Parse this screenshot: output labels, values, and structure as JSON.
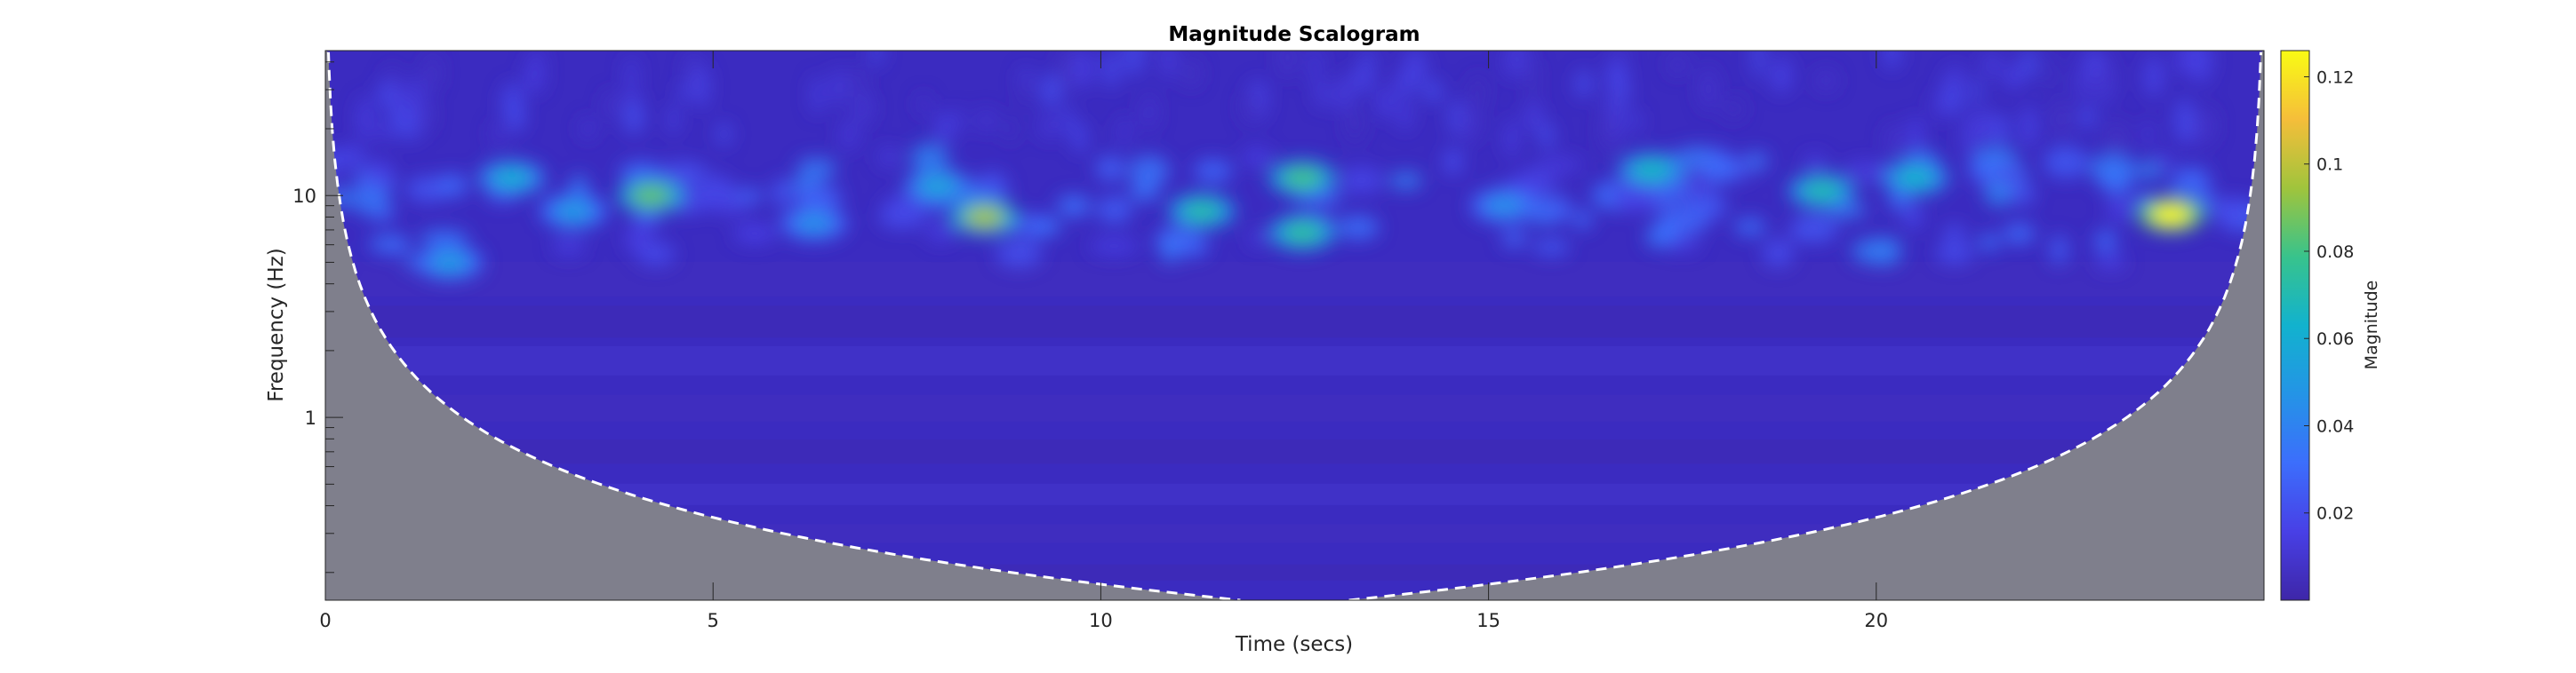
{
  "chart_data": {
    "type": "heatmap",
    "title": "Magnitude Scalogram",
    "xlabel": "Time (secs)",
    "ylabel": "Frequency (Hz)",
    "xlim": [
      0,
      25
    ],
    "ylim": [
      0.15,
      45
    ],
    "yscale": "log",
    "x_ticks": [
      0,
      5,
      10,
      15,
      20
    ],
    "x_tick_labels": [
      "0",
      "5",
      "10",
      "15",
      "20"
    ],
    "y_ticks": [
      1,
      10
    ],
    "y_tick_labels": [
      "1",
      "10"
    ],
    "colorbar": {
      "label": "Magnitude",
      "range": [
        0,
        0.126
      ],
      "ticks": [
        0.02,
        0.04,
        0.06,
        0.08,
        0.1,
        0.12
      ],
      "tick_labels": [
        "0.02",
        "0.04",
        "0.06",
        "0.08",
        "0.1",
        "0.12"
      ],
      "colormap": "parula"
    },
    "cone_of_influence": {
      "style": "dashed white",
      "shaded_color": "#7f7f8c",
      "min_frequency_hz": 0.15,
      "t_at_min_frequency": [
        11.8,
        13.2
      ]
    },
    "dominant_band_hz": [
      5,
      15
    ],
    "hotspots": [
      {
        "time": 23.8,
        "frequency": 8.2,
        "magnitude": 0.125
      },
      {
        "time": 8.5,
        "frequency": 8.0,
        "magnitude": 0.095
      },
      {
        "time": 4.2,
        "frequency": 10.0,
        "magnitude": 0.085
      },
      {
        "time": 12.6,
        "frequency": 12.0,
        "magnitude": 0.08
      },
      {
        "time": 12.6,
        "frequency": 6.8,
        "magnitude": 0.075
      },
      {
        "time": 11.3,
        "frequency": 8.5,
        "magnitude": 0.072
      },
      {
        "time": 19.3,
        "frequency": 10.5,
        "magnitude": 0.07
      },
      {
        "time": 17.1,
        "frequency": 13.0,
        "magnitude": 0.066
      },
      {
        "time": 20.5,
        "frequency": 12.0,
        "magnitude": 0.064
      },
      {
        "time": 2.4,
        "frequency": 12.0,
        "magnitude": 0.06
      },
      {
        "time": 7.9,
        "frequency": 11.0,
        "magnitude": 0.055
      },
      {
        "time": 1.6,
        "frequency": 5.0,
        "magnitude": 0.05
      },
      {
        "time": 3.2,
        "frequency": 8.5,
        "magnitude": 0.05
      },
      {
        "time": 6.3,
        "frequency": 7.5,
        "magnitude": 0.045
      },
      {
        "time": 15.2,
        "frequency": 9.0,
        "magnitude": 0.045
      }
    ]
  }
}
